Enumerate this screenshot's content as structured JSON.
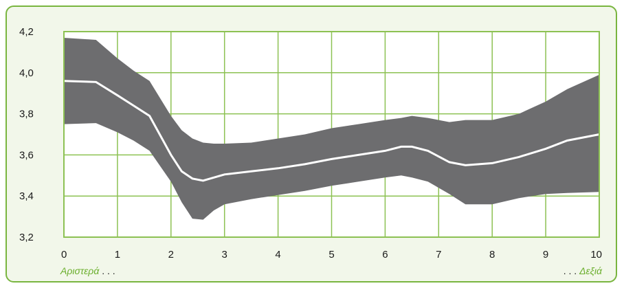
{
  "chart_data": {
    "type": "area",
    "title": "",
    "xlabel": "",
    "ylabel": "",
    "xlim": [
      0,
      10
    ],
    "ylim": [
      3.2,
      4.2
    ],
    "x_ticks": [
      "0",
      "1",
      "2",
      "3",
      "4",
      "5",
      "6",
      "7",
      "8",
      "9",
      "10"
    ],
    "y_ticks": [
      "3,2",
      "3,4",
      "3,6",
      "3,8",
      "4,0",
      "4,2"
    ],
    "grid": true,
    "x": [
      0,
      0.6,
      1,
      1.3,
      1.6,
      2,
      2.2,
      2.4,
      2.6,
      2.8,
      3,
      3.5,
      4,
      4.5,
      5,
      5.5,
      6,
      6.3,
      6.5,
      6.8,
      7.2,
      7.5,
      8,
      8.5,
      9,
      9.4,
      10
    ],
    "series": [
      {
        "role": "upper",
        "values": [
          4.17,
          4.16,
          4.07,
          4.01,
          3.96,
          3.79,
          3.72,
          3.68,
          3.66,
          3.655,
          3.655,
          3.66,
          3.68,
          3.7,
          3.73,
          3.75,
          3.77,
          3.78,
          3.79,
          3.78,
          3.76,
          3.77,
          3.77,
          3.8,
          3.86,
          3.92,
          3.99
        ]
      },
      {
        "role": "center",
        "values": [
          3.96,
          3.955,
          3.89,
          3.84,
          3.79,
          3.6,
          3.52,
          3.485,
          3.475,
          3.49,
          3.505,
          3.52,
          3.535,
          3.555,
          3.58,
          3.6,
          3.62,
          3.64,
          3.64,
          3.62,
          3.565,
          3.55,
          3.56,
          3.59,
          3.63,
          3.67,
          3.7
        ]
      },
      {
        "role": "lower",
        "values": [
          3.75,
          3.755,
          3.71,
          3.67,
          3.62,
          3.47,
          3.37,
          3.29,
          3.285,
          3.33,
          3.36,
          3.385,
          3.405,
          3.425,
          3.45,
          3.47,
          3.49,
          3.5,
          3.49,
          3.47,
          3.41,
          3.36,
          3.36,
          3.39,
          3.41,
          3.415,
          3.42
        ]
      }
    ],
    "band_color": "#6d6d6f",
    "line_color": "#ffffff",
    "grid_color": "#8cc152",
    "footer": {
      "left_word": "Αριστερά",
      "left_dots": " . . .",
      "right_dots": ". . . ",
      "right_word": "Δεξιά"
    }
  }
}
